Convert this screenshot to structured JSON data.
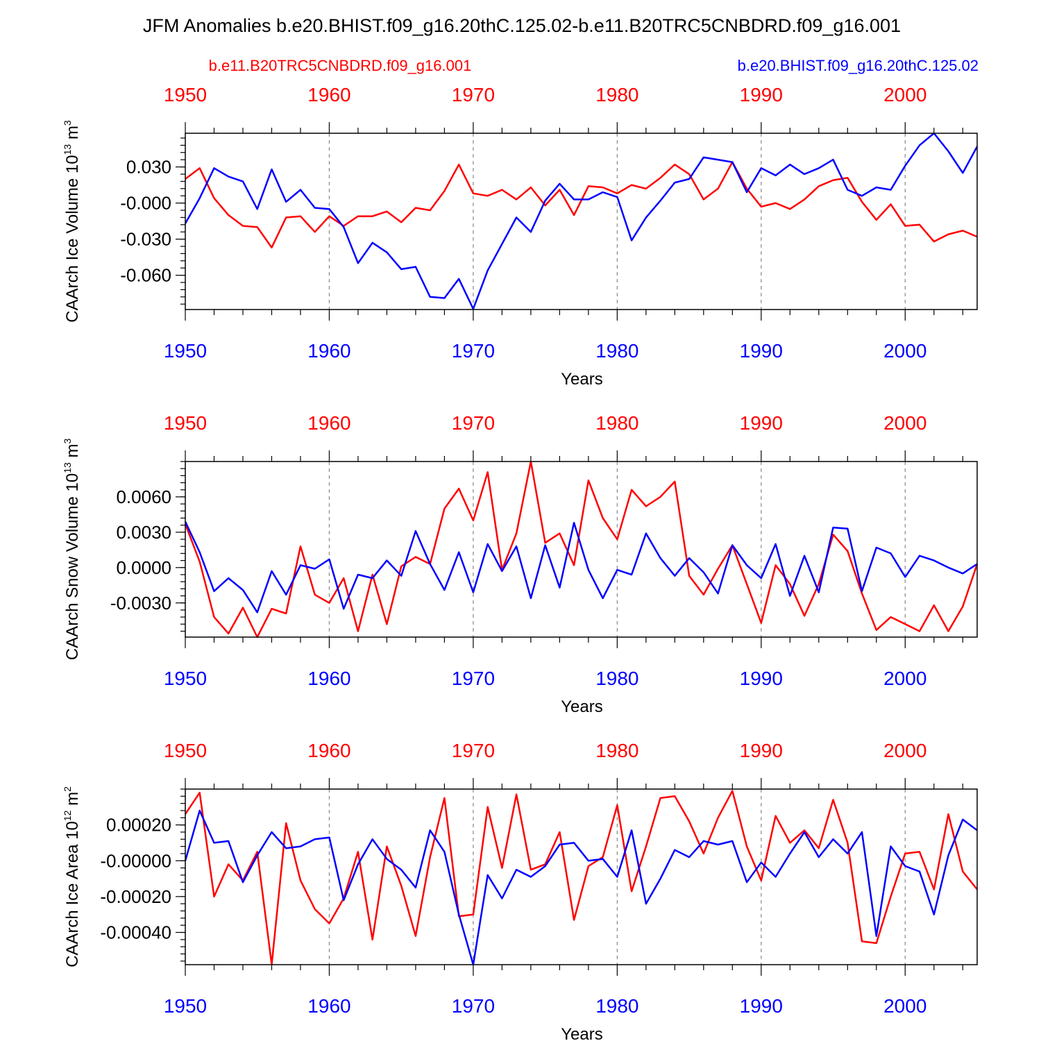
{
  "figure": {
    "title": "JFM Anomalies b.e20.BHIST.f09_g16.20thC.125.02-b.e11.B20TRC5CNBDRD.f09_g16.001",
    "legend_red": "b.e11.B20TRC5CNBDRD.f09_g16.001",
    "legend_blue": "b.e20.BHIST.f09_g16.20thC.125.02"
  },
  "colors": {
    "red": "#ff0000",
    "blue": "#0000ff"
  },
  "chart_data": [
    {
      "type": "line",
      "title": "",
      "xlabel": "Years",
      "ylabel_main": "CAArch Ice Volume 10",
      "ylabel_exp": "13",
      "ylabel_tail": " m",
      "ylabel_exp2": "3",
      "xlim": [
        1950,
        2005
      ],
      "ylim": [
        -0.0885,
        0.058
      ],
      "yticks": [
        0.03,
        0.0,
        -0.03,
        -0.06
      ],
      "ytick_labels": [
        "0.030",
        "-0.000",
        "-0.030",
        "-0.060"
      ],
      "yminor_step": 0.006,
      "xticks": [
        1950,
        1960,
        1970,
        1980,
        1990,
        2000
      ],
      "xtick_labels": [
        "1950",
        "1960",
        "1970",
        "1980",
        "1990",
        "2000"
      ],
      "x": [
        1950,
        1951,
        1952,
        1953,
        1954,
        1955,
        1956,
        1957,
        1958,
        1959,
        1960,
        1961,
        1962,
        1963,
        1964,
        1965,
        1966,
        1967,
        1968,
        1969,
        1970,
        1971,
        1972,
        1973,
        1974,
        1975,
        1976,
        1977,
        1978,
        1979,
        1980,
        1981,
        1982,
        1983,
        1984,
        1985,
        1986,
        1987,
        1988,
        1989,
        1990,
        1991,
        1992,
        1993,
        1994,
        1995,
        1996,
        1997,
        1998,
        1999,
        2000,
        2001,
        2002,
        2003,
        2004,
        2005
      ],
      "series": [
        {
          "name": "b.e11.B20TRC5CNBDRD.f09_g16.001",
          "color": "red",
          "values": [
            0.02,
            0.029,
            0.004,
            -0.01,
            -0.019,
            -0.02,
            -0.037,
            -0.012,
            -0.011,
            -0.024,
            -0.011,
            -0.019,
            -0.011,
            -0.011,
            -0.007,
            -0.016,
            -0.004,
            -0.006,
            0.01,
            0.032,
            0.008,
            0.006,
            0.011,
            0.003,
            0.013,
            -0.002,
            0.011,
            -0.01,
            0.014,
            0.013,
            0.008,
            0.015,
            0.012,
            0.021,
            0.032,
            0.024,
            0.003,
            0.012,
            0.034,
            0.012,
            -0.003,
            0.0,
            -0.005,
            0.003,
            0.014,
            0.019,
            0.021,
            0.001,
            -0.014,
            -0.001,
            -0.019,
            -0.018,
            -0.032,
            -0.026,
            -0.023,
            -0.028
          ]
        },
        {
          "name": "b.e20.BHIST.f09_g16.20thC.125.02",
          "color": "blue",
          "values": [
            -0.017,
            0.004,
            0.029,
            0.022,
            0.018,
            -0.005,
            0.028,
            0.001,
            0.011,
            -0.004,
            -0.005,
            -0.02,
            -0.05,
            -0.033,
            -0.041,
            -0.055,
            -0.053,
            -0.078,
            -0.079,
            -0.063,
            -0.088,
            -0.056,
            -0.034,
            -0.012,
            -0.024,
            0.002,
            0.016,
            0.003,
            0.003,
            0.009,
            0.005,
            -0.031,
            -0.012,
            0.002,
            0.017,
            0.02,
            0.038,
            0.036,
            0.034,
            0.009,
            0.029,
            0.023,
            0.032,
            0.024,
            0.029,
            0.036,
            0.011,
            0.006,
            0.013,
            0.011,
            0.031,
            0.048,
            0.058,
            0.043,
            0.025,
            0.047
          ]
        }
      ]
    },
    {
      "type": "line",
      "title": "",
      "xlabel": "Years",
      "ylabel_main": "CAArch Snow Volume 10",
      "ylabel_exp": "13",
      "ylabel_tail": " m",
      "ylabel_exp2": "3",
      "xlim": [
        1950,
        2005
      ],
      "ylim": [
        -0.0059,
        0.009
      ],
      "yticks": [
        0.006,
        0.003,
        0.0,
        -0.003
      ],
      "ytick_labels": [
        "0.0060",
        "0.0030",
        "0.0000",
        "-0.0030"
      ],
      "yminor_step": 0.0006,
      "xticks": [
        1950,
        1960,
        1970,
        1980,
        1990,
        2000
      ],
      "xtick_labels": [
        "1950",
        "1960",
        "1970",
        "1980",
        "1990",
        "2000"
      ],
      "x": [
        1950,
        1951,
        1952,
        1953,
        1954,
        1955,
        1956,
        1957,
        1958,
        1959,
        1960,
        1961,
        1962,
        1963,
        1964,
        1965,
        1966,
        1967,
        1968,
        1969,
        1970,
        1971,
        1972,
        1973,
        1974,
        1975,
        1976,
        1977,
        1978,
        1979,
        1980,
        1981,
        1982,
        1983,
        1984,
        1985,
        1986,
        1987,
        1988,
        1989,
        1990,
        1991,
        1992,
        1993,
        1994,
        1995,
        1996,
        1997,
        1998,
        1999,
        2000,
        2001,
        2002,
        2003,
        2004,
        2005
      ],
      "series": [
        {
          "name": "b.e11.B20TRC5CNBDRD.f09_g16.001",
          "color": "red",
          "values": [
            0.0037,
            0.0005,
            -0.0042,
            -0.0056,
            -0.0034,
            -0.0059,
            -0.0035,
            -0.0039,
            0.0018,
            -0.0023,
            -0.003,
            -0.0009,
            -0.0054,
            -0.0006,
            -0.0048,
            0.0001,
            0.0009,
            0.0003,
            0.005,
            0.0067,
            0.004,
            0.0081,
            -0.0002,
            0.0029,
            0.009,
            0.0021,
            0.0029,
            0.0002,
            0.0074,
            0.0042,
            0.0024,
            0.0066,
            0.0052,
            0.006,
            0.0073,
            -0.0007,
            -0.0023,
            -0.0001,
            0.0019,
            -0.0014,
            -0.0047,
            0.0002,
            -0.0014,
            -0.0041,
            -0.0014,
            0.0028,
            0.0014,
            -0.0022,
            -0.0053,
            -0.0042,
            -0.0048,
            -0.0054,
            -0.0032,
            -0.0054,
            -0.0033,
            0.0003
          ]
        },
        {
          "name": "b.e20.BHIST.f09_g16.20thC.125.02",
          "color": "blue",
          "values": [
            0.0039,
            0.0013,
            -0.002,
            -0.0009,
            -0.0019,
            -0.0038,
            -0.0003,
            -0.0023,
            0.0002,
            -0.0001,
            0.0007,
            -0.0035,
            -0.0006,
            -0.0009,
            0.0006,
            -0.0007,
            0.0031,
            0.0003,
            -0.0019,
            0.0013,
            -0.0021,
            0.002,
            -0.0003,
            0.0018,
            -0.0026,
            0.0019,
            -0.0017,
            0.0038,
            -0.0002,
            -0.0026,
            -0.0002,
            -0.0006,
            0.0029,
            0.0008,
            -0.0007,
            0.0008,
            -0.0004,
            -0.0022,
            0.0019,
            0.0002,
            -0.0009,
            0.002,
            -0.0024,
            0.001,
            -0.0021,
            0.0034,
            0.0033,
            -0.002,
            0.0017,
            0.0012,
            -0.0008,
            0.001,
            0.0006,
            0.0,
            -0.0005,
            0.0003
          ]
        }
      ]
    },
    {
      "type": "line",
      "title": "",
      "xlabel": "Years",
      "ylabel_main": "CAArch Ice Area 10",
      "ylabel_exp": "12",
      "ylabel_tail": " m",
      "ylabel_exp2": "2",
      "xlim": [
        1950,
        2005
      ],
      "ylim": [
        -0.00058,
        0.0004
      ],
      "yticks": [
        0.0002,
        0.0,
        -0.0002,
        -0.0004
      ],
      "ytick_labels": [
        "0.00020",
        "-0.00000",
        "-0.00020",
        "-0.00040"
      ],
      "yminor_step": 4e-05,
      "xticks": [
        1950,
        1960,
        1970,
        1980,
        1990,
        2000
      ],
      "xtick_labels": [
        "1950",
        "1960",
        "1970",
        "1980",
        "1990",
        "2000"
      ],
      "x": [
        1950,
        1951,
        1952,
        1953,
        1954,
        1955,
        1956,
        1957,
        1958,
        1959,
        1960,
        1961,
        1962,
        1963,
        1964,
        1965,
        1966,
        1967,
        1968,
        1969,
        1970,
        1971,
        1972,
        1973,
        1974,
        1975,
        1976,
        1977,
        1978,
        1979,
        1980,
        1981,
        1982,
        1983,
        1984,
        1985,
        1986,
        1987,
        1988,
        1989,
        1990,
        1991,
        1992,
        1993,
        1994,
        1995,
        1996,
        1997,
        1998,
        1999,
        2000,
        2001,
        2002,
        2003,
        2004,
        2005
      ],
      "series": [
        {
          "name": "b.e11.B20TRC5CNBDRD.f09_g16.001",
          "color": "red",
          "values": [
            0.00026,
            0.00038,
            -0.0002,
            -2e-05,
            -0.00011,
            5e-05,
            -0.00058,
            0.00021,
            -0.00011,
            -0.00027,
            -0.00035,
            -0.00021,
            5e-05,
            -0.00044,
            8e-05,
            -0.00014,
            -0.00042,
            2e-05,
            0.00035,
            -0.00031,
            -0.0003,
            0.0003,
            -4e-05,
            0.00037,
            -5e-05,
            -2e-05,
            0.00016,
            -0.00033,
            -3e-05,
            2e-05,
            0.00031,
            -0.00017,
            8e-05,
            0.00035,
            0.00036,
            0.00022,
            4e-05,
            0.00024,
            0.00039,
            8e-05,
            -0.00011,
            0.00025,
            0.0001,
            0.00017,
            7e-05,
            0.00034,
            0.0001,
            -0.00045,
            -0.00046,
            -0.0002,
            4e-05,
            5e-05,
            -0.00016,
            0.00026,
            -6e-05,
            -0.00016
          ]
        },
        {
          "name": "b.e20.BHIST.f09_g16.20thC.125.02",
          "color": "blue",
          "values": [
            0.0,
            0.00028,
            0.0001,
            0.00011,
            -0.00012,
            3e-05,
            0.00016,
            7e-05,
            8e-05,
            0.00012,
            0.00013,
            -0.00022,
            -2e-05,
            0.00012,
            1e-05,
            -5e-05,
            -0.00015,
            0.00017,
            5e-05,
            -0.0003,
            -0.00058,
            -8e-05,
            -0.00021,
            -5e-05,
            -9e-05,
            -3e-05,
            9e-05,
            0.0001,
            0.0,
            1e-05,
            -9e-05,
            0.00017,
            -0.00024,
            -0.0001,
            6e-05,
            2e-05,
            0.00011,
            9e-05,
            0.00011,
            -0.00012,
            -1e-05,
            -9e-05,
            4e-05,
            0.00016,
            2e-05,
            0.00012,
            4e-05,
            0.00016,
            -0.00042,
            8e-05,
            -3e-05,
            -6e-05,
            -0.0003,
            3e-05,
            0.00023,
            0.00017
          ]
        }
      ]
    }
  ]
}
